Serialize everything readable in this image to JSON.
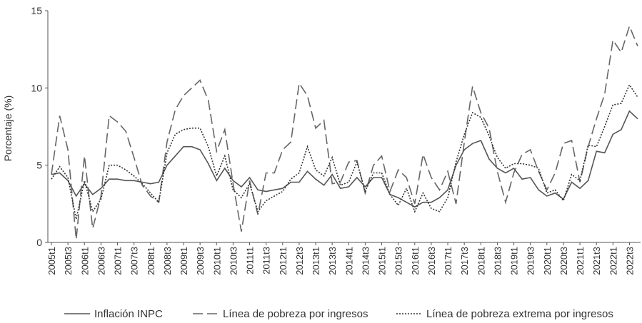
{
  "chart_data": {
    "type": "line",
    "y_label": "Porcentaje (%)",
    "categories": [
      "2005t1",
      null,
      "2005t3",
      null,
      "2006t1",
      null,
      "2006t3",
      null,
      "2007t1",
      null,
      "2007t3",
      null,
      "2008t1",
      null,
      "2008t3",
      null,
      "2009t1",
      null,
      "2009t3",
      null,
      "2010t1",
      null,
      "2010t3",
      null,
      "2011t1",
      null,
      "2011t3",
      null,
      "2012t1",
      null,
      "2012t3",
      null,
      "2013t1",
      null,
      "2013t3",
      null,
      "2014t1",
      null,
      "2014t3",
      null,
      "2015t1",
      null,
      "2015t3",
      null,
      "2016t1",
      null,
      "2016t3",
      null,
      "2017t1",
      null,
      "2017t3",
      null,
      "2018t1",
      null,
      "2018t3",
      null,
      "2019t1",
      null,
      "2019t3",
      null,
      "2020t1",
      null,
      "2020t3",
      null,
      "2021t1",
      null,
      "2021t3",
      null,
      "2022t1",
      null,
      "2022t3",
      null
    ],
    "series": [
      {
        "name": "Inflación INPC",
        "color": "#555555",
        "style": "solid",
        "values": [
          4.4,
          4.5,
          4.0,
          3.0,
          3.8,
          3.1,
          3.5,
          4.1,
          4.1,
          4.0,
          4.0,
          3.9,
          3.8,
          3.9,
          5.0,
          5.6,
          6.2,
          6.2,
          6.0,
          5.1,
          4.0,
          4.8,
          4.0,
          3.6,
          4.2,
          3.4,
          3.3,
          3.4,
          3.5,
          3.9,
          3.9,
          4.6,
          4.1,
          3.7,
          4.4,
          3.5,
          3.6,
          4.2,
          3.6,
          4.2,
          4.2,
          3.1,
          2.9,
          2.6,
          2.3,
          2.6,
          2.6,
          2.9,
          3.4,
          5.0,
          6.0,
          6.4,
          6.6,
          5.4,
          4.8,
          4.5,
          4.8,
          4.1,
          4.2,
          3.4,
          3.0,
          3.2,
          2.8,
          3.9,
          3.5,
          4.0,
          5.9,
          5.8,
          7.0,
          7.3,
          8.5,
          8.0
        ]
      },
      {
        "name": "Línea de pobreza por ingresos",
        "color": "#666666",
        "style": "dashed",
        "values": [
          4.4,
          8.2,
          6.0,
          0.2,
          5.6,
          0.9,
          3.0,
          8.2,
          7.8,
          7.2,
          5.5,
          3.7,
          3.0,
          2.6,
          6.5,
          8.6,
          9.5,
          10.0,
          10.5,
          9.2,
          5.9,
          7.3,
          3.8,
          0.7,
          4.0,
          1.8,
          4.5,
          4.5,
          6.0,
          6.5,
          10.3,
          9.5,
          7.4,
          7.9,
          3.8,
          3.9,
          5.2,
          5.3,
          3.2,
          5.0,
          5.6,
          3.3,
          4.7,
          4.2,
          2.5,
          5.7,
          4.2,
          3.4,
          4.6,
          2.5,
          6.5,
          10.1,
          8.4,
          7.4,
          4.6,
          2.6,
          4.5,
          5.7,
          6.0,
          4.6,
          3.4,
          4.5,
          6.4,
          6.6,
          3.9,
          6.2,
          8.0,
          9.6,
          13.1,
          12.3,
          14.0,
          12.7
        ]
      },
      {
        "name": "Línea de pobreza extrema por ingresos",
        "color": "#333333",
        "style": "dotted",
        "values": [
          4.1,
          4.9,
          4.2,
          1.5,
          4.0,
          2.0,
          2.8,
          5.0,
          5.0,
          4.7,
          4.3,
          3.8,
          3.2,
          2.6,
          5.8,
          7.0,
          7.3,
          7.4,
          7.4,
          6.2,
          4.3,
          5.6,
          3.4,
          2.9,
          3.8,
          2.0,
          2.7,
          3.0,
          3.3,
          4.1,
          4.5,
          6.2,
          4.7,
          4.3,
          5.5,
          3.7,
          3.9,
          5.2,
          3.3,
          4.5,
          4.5,
          3.1,
          2.4,
          3.5,
          2.0,
          3.2,
          2.2,
          2.0,
          2.9,
          5.2,
          7.0,
          8.4,
          8.1,
          6.9,
          5.5,
          4.8,
          5.1,
          5.1,
          5.0,
          4.8,
          3.2,
          3.4,
          2.7,
          4.4,
          4.0,
          6.3,
          6.2,
          7.5,
          8.9,
          9.0,
          10.2,
          9.4
        ]
      }
    ],
    "ylim": [
      0,
      15
    ],
    "yticks": [
      0,
      5,
      10,
      15
    ],
    "grid": false
  }
}
